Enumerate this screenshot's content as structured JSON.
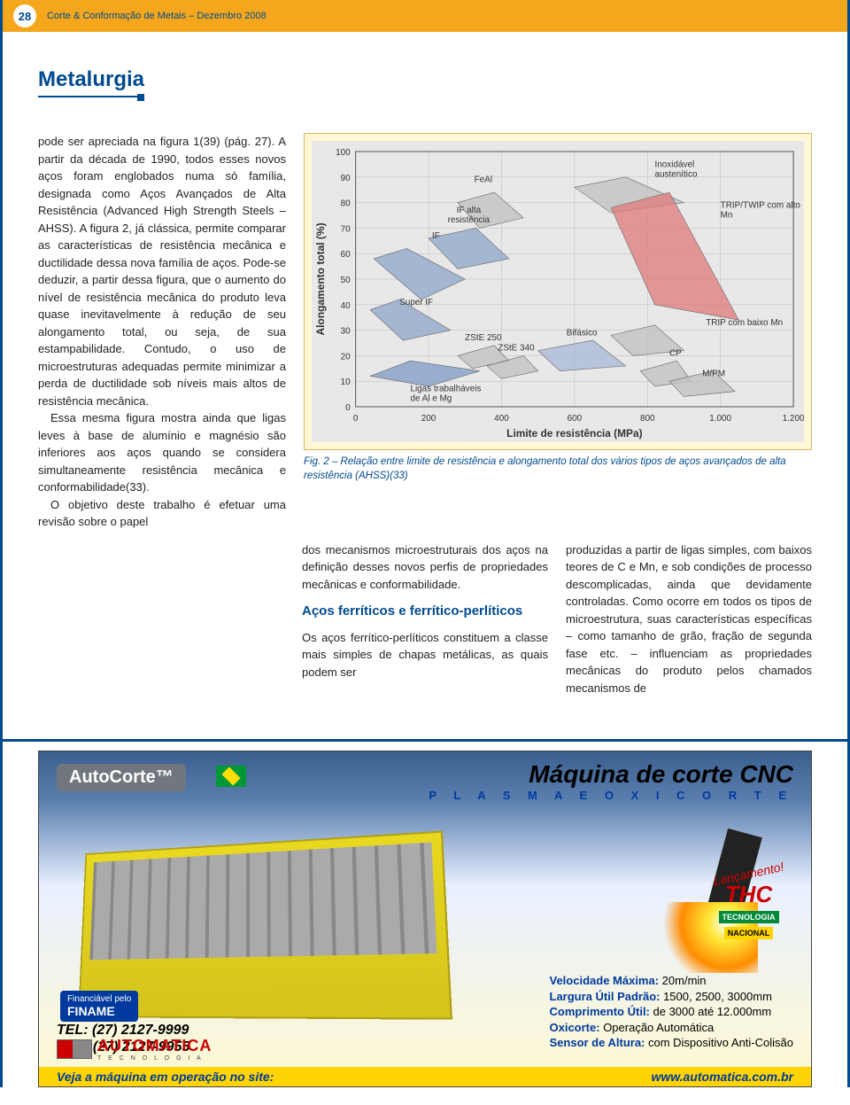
{
  "header": {
    "page_number": "28",
    "publication": "Corte & Conformação de Metais – Dezembro 2008"
  },
  "section_title": "Metalurgia",
  "body": {
    "col1_p1": "pode ser apreciada na figura 1(39) (pág. 27). A partir da década de 1990, todos esses novos aços foram englobados numa só família, designada como Aços Avançados de Alta Resistência (Advanced High Strength Steels – AHSS). A figura 2, já clássica, permite comparar as características de resistência mecânica e ductilidade dessa nova família de aços. Pode-se deduzir, a partir dessa figura, que o aumento do nível de resistência mecânica do produto leva quase inevitavelmente à redução de seu alongamento total, ou seja, de sua estampabilidade. Contudo, o uso de microestruturas adequadas permite minimizar a perda de ductilidade sob níveis mais altos de resistência mecânica.",
    "col1_p2": "Essa mesma figura mostra ainda que ligas leves à base de alumínio e magnésio são inferiores aos aços quando se considera simultaneamente resistência mecânica e conformabilidade(33).",
    "col1_p3": "O objetivo deste trabalho é efetuar uma revisão sobre o papel",
    "col2_p1": "dos mecanismos microestruturais dos aços na definição desses novos perfis de propriedades mecânicas e conformabilidade.",
    "col2_h": "Aços ferríticos e ferrítico-perlíticos",
    "col2_p2": "Os aços ferrítico-perlíticos constituem a classe mais simples de chapas metálicas, as quais podem ser",
    "col3_p1": "produzidas a partir de ligas simples, com baixos teores de C e Mn, e sob condições de processo descomplicadas, ainda que devidamente controladas. Como ocorre em todos os tipos de microestrutura, suas características específicas – como tamanho de grão, fração de segunda fase etc. – influenciam as propriedades mecânicas do produto pelos chamados mecanismos de"
  },
  "chart": {
    "caption": "Fig. 2 – Relação entre limite de resistência e alongamento total dos vários tipos de aços avançados de alta resistência (AHSS)(33)",
    "xlabel": "Limite de resistência (MPa)",
    "ylabel": "Alongamento total (%)",
    "xlim": [
      0,
      1200
    ],
    "ylim": [
      0,
      100
    ],
    "xticks": [
      0,
      200,
      400,
      600,
      800,
      1000,
      1200
    ],
    "yticks": [
      0,
      10,
      20,
      30,
      40,
      50,
      60,
      70,
      80,
      90,
      100
    ],
    "background_color": "#e8e8e8",
    "grid_color": "#bdbdbd",
    "regions": [
      {
        "label": "IF",
        "color": "#8fa6c9",
        "poly": [
          [
            50,
            58
          ],
          [
            140,
            62
          ],
          [
            300,
            50
          ],
          [
            180,
            42
          ]
        ]
      },
      {
        "label": "Super IF",
        "color": "#8fa6c9",
        "poly": [
          [
            40,
            38
          ],
          [
            120,
            42
          ],
          [
            260,
            30
          ],
          [
            130,
            26
          ]
        ]
      },
      {
        "label": "Ligas trabalháveis de Al e Mg",
        "color": "#7e9bc7",
        "poly": [
          [
            40,
            12
          ],
          [
            150,
            18
          ],
          [
            340,
            14
          ],
          [
            200,
            8
          ]
        ]
      },
      {
        "label": "IF alta resistência",
        "color": "#8fa6c9",
        "poly": [
          [
            200,
            66
          ],
          [
            330,
            70
          ],
          [
            420,
            58
          ],
          [
            280,
            54
          ]
        ]
      },
      {
        "label": "FeAl",
        "color": "#c0c0c0",
        "poly": [
          [
            280,
            80
          ],
          [
            380,
            84
          ],
          [
            460,
            74
          ],
          [
            340,
            70
          ]
        ]
      },
      {
        "label": "Inoxidável austenítico",
        "color": "#c0c0c0",
        "poly": [
          [
            600,
            86
          ],
          [
            740,
            90
          ],
          [
            900,
            80
          ],
          [
            700,
            76
          ]
        ]
      },
      {
        "label": "TRIP/TWIP com alto Mn",
        "color": "#e07a7a",
        "poly": [
          [
            700,
            78
          ],
          [
            860,
            84
          ],
          [
            1050,
            34
          ],
          [
            820,
            40
          ]
        ]
      },
      {
        "label": "ZStE 250",
        "color": "#c0c0c0",
        "poly": [
          [
            280,
            20
          ],
          [
            380,
            24
          ],
          [
            420,
            18
          ],
          [
            320,
            15
          ]
        ]
      },
      {
        "label": "ZStE 340",
        "color": "#c0c0c0",
        "poly": [
          [
            360,
            16
          ],
          [
            460,
            20
          ],
          [
            500,
            14
          ],
          [
            400,
            11
          ]
        ]
      },
      {
        "label": "Bifásico",
        "color": "#a8b8d8",
        "poly": [
          [
            500,
            22
          ],
          [
            650,
            26
          ],
          [
            740,
            16
          ],
          [
            560,
            14
          ]
        ]
      },
      {
        "label": "TRIP com baixo Mn",
        "color": "#c0c0c0",
        "poly": [
          [
            700,
            28
          ],
          [
            820,
            32
          ],
          [
            900,
            22
          ],
          [
            760,
            20
          ]
        ]
      },
      {
        "label": "CP",
        "color": "#c0c0c0",
        "poly": [
          [
            780,
            14
          ],
          [
            880,
            18
          ],
          [
            920,
            10
          ],
          [
            820,
            8
          ]
        ]
      },
      {
        "label": "M/PM",
        "color": "#c0c0c0",
        "poly": [
          [
            860,
            10
          ],
          [
            980,
            14
          ],
          [
            1040,
            6
          ],
          [
            900,
            4
          ]
        ]
      }
    ],
    "label_fontsize": 10,
    "axis_fontsize": 12
  },
  "ad": {
    "brand_box": "AutoCorte™",
    "title": "Máquina de corte CNC",
    "subtitle": "P L A S M A   E   O X I C O R T E",
    "lancamento": "Lançamento!",
    "thc": "THC",
    "thc_badge1": "TECNOLOGIA",
    "thc_badge2": "NACIONAL",
    "finame_pre": "Financiável pelo",
    "finame": "FINAME",
    "tel": "TEL:  (27) 2127-9999",
    "fax": "FAX: (27) 2127-9955",
    "spec1_k": "Velocidade Máxima:",
    "spec1_v": " 20m/min",
    "spec2_k": "Largura Útil Padrão:",
    "spec2_v": " 1500, 2500, 3000mm",
    "spec3_k": "Comprimento Útil:",
    "spec3_v": " de 3000 até 12.000mm",
    "spec4_k": "Oxicorte:",
    "spec4_v": " Operação Automática",
    "spec5_k": "Sensor de Altura:",
    "spec5_v": " com Dispositivo Anti-Colisão",
    "logo_text": "AUTOMATICA",
    "logo_sub": "T E C N O L O G I A",
    "bottom_left": "Veja a máquina em operação no site:",
    "bottom_right": "www.automatica.com.br"
  }
}
